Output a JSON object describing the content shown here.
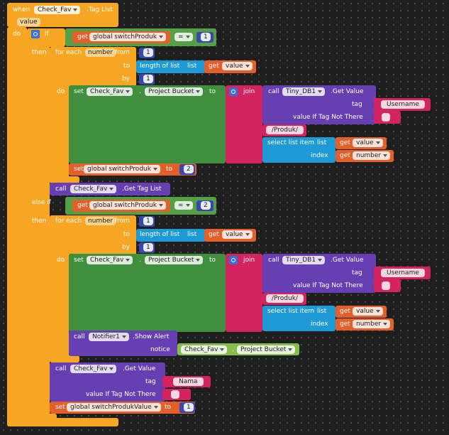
{
  "lines": [
    [
      "when",
      "Check_Fav",
      ".Tag List"
    ],
    [
      "value"
    ],
    [
      "do"
    ],
    [
      "if"
    ],
    [
      "get",
      "global switchProduk",
      "=",
      1
    ],
    [
      "then"
    ],
    [
      "for each",
      "number",
      "from",
      1
    ],
    [
      "to",
      "length of list",
      "list",
      "get",
      "value"
    ],
    [
      "by",
      1
    ],
    [
      "do",
      "set",
      "Check_Fav",
      ".",
      "Project Bucket",
      "to",
      "join",
      "call",
      "Tiny_DB1",
      ".Get Value"
    ],
    [
      "tag",
      "Username"
    ],
    [
      "value If Tag Not There"
    ],
    [
      "/Produk/"
    ],
    [
      "select list item",
      "list",
      "get",
      "value"
    ],
    [
      "index",
      "get",
      "number"
    ],
    [
      "set",
      "global switchProduk",
      "to",
      2
    ],
    [
      "call",
      "Check_Fav",
      ".Get Tag List"
    ],
    [
      "else if",
      "get",
      "global switchProduk",
      "=",
      2
    ],
    [
      "then"
    ],
    [
      "for each",
      "number",
      "from",
      1
    ],
    [
      "to",
      "length of list",
      "list",
      "get",
      "value"
    ],
    [
      "by",
      1
    ],
    [
      "do",
      "set",
      "Check_Fav",
      ".",
      "Project Bucket",
      "to",
      "join",
      "call",
      "Tiny_DB1",
      ".Get Value"
    ],
    [
      "tag",
      "Username"
    ],
    [
      "value If Tag Not There"
    ],
    [
      "/Produk/"
    ],
    [
      "select list item",
      "list",
      "get",
      "value"
    ],
    [
      "index",
      "get",
      "number"
    ],
    [
      "call",
      "Notifier1",
      ".Show Alert"
    ],
    [
      "notice",
      "Check_Fav",
      ".",
      "Project Bucket"
    ],
    [
      "call",
      "Check_Fav",
      ".Get Value"
    ],
    [
      "tag",
      "Nama"
    ],
    [
      "value If Tag Not There"
    ],
    [
      "set",
      "global switchProdukValue",
      "to",
      1
    ]
  ]
}
